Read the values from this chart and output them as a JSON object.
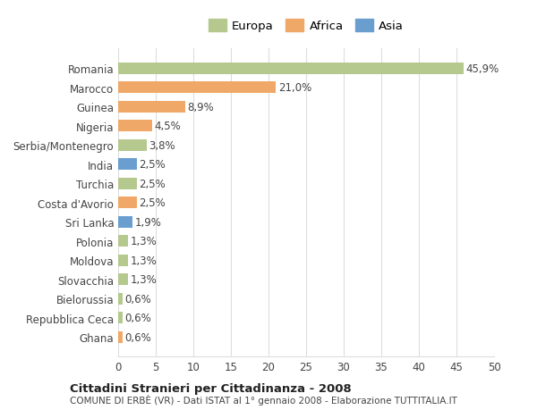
{
  "categories": [
    "Romania",
    "Marocco",
    "Guinea",
    "Nigeria",
    "Serbia/Montenegro",
    "India",
    "Turchia",
    "Costa d'Avorio",
    "Sri Lanka",
    "Polonia",
    "Moldova",
    "Slovacchia",
    "Bielorussia",
    "Repubblica Ceca",
    "Ghana"
  ],
  "values": [
    45.9,
    21.0,
    8.9,
    4.5,
    3.8,
    2.5,
    2.5,
    2.5,
    1.9,
    1.3,
    1.3,
    1.3,
    0.6,
    0.6,
    0.6
  ],
  "labels": [
    "45,9%",
    "21,0%",
    "8,9%",
    "4,5%",
    "3,8%",
    "2,5%",
    "2,5%",
    "2,5%",
    "1,9%",
    "1,3%",
    "1,3%",
    "1,3%",
    "0,6%",
    "0,6%",
    "0,6%"
  ],
  "continents": [
    "Europa",
    "Africa",
    "Africa",
    "Africa",
    "Europa",
    "Asia",
    "Europa",
    "Africa",
    "Asia",
    "Europa",
    "Europa",
    "Europa",
    "Europa",
    "Europa",
    "Africa"
  ],
  "colors": {
    "Europa": "#b5c98e",
    "Africa": "#f0a868",
    "Asia": "#6a9ecf"
  },
  "legend_colors": {
    "Europa": "#b5c98e",
    "Africa": "#f0a868",
    "Asia": "#6a9ecf"
  },
  "title_main": "Cittadini Stranieri per Cittadinanza - 2008",
  "title_sub": "COMUNE DI ERBÈ (VR) - Dati ISTAT al 1° gennaio 2008 - Elaborazione TUTTITALIA.IT",
  "xlim": [
    0,
    50
  ],
  "xticks": [
    0,
    5,
    10,
    15,
    20,
    25,
    30,
    35,
    40,
    45,
    50
  ],
  "background_color": "#ffffff",
  "grid_color": "#dddddd",
  "bar_height": 0.6,
  "label_fontsize": 8.5,
  "tick_fontsize": 8.5
}
